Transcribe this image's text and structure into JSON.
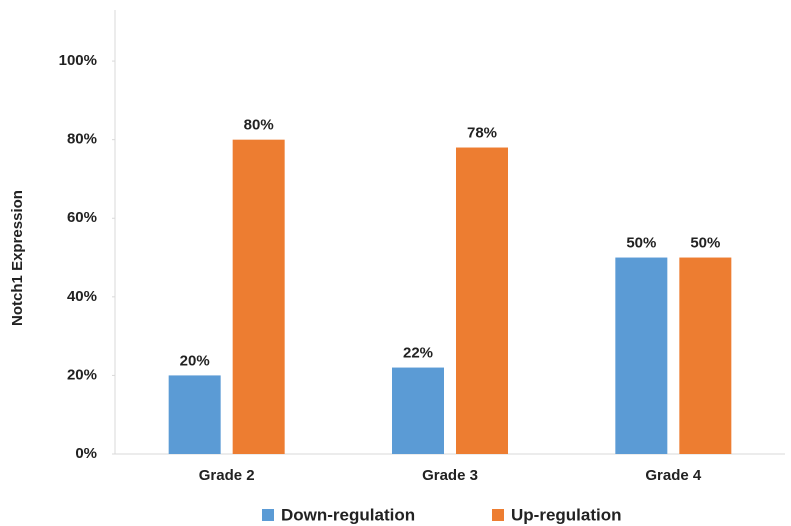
{
  "chart_data": {
    "type": "bar",
    "y_label": "Notch1 Expression",
    "categories": [
      "Grade 2",
      "Grade 3",
      "Grade 4"
    ],
    "series": [
      {
        "name": "Down-regulation",
        "color": "#5b9bd5",
        "values": [
          20,
          22,
          50
        ],
        "value_labels": [
          "20%",
          "22%",
          "50%"
        ]
      },
      {
        "name": "Up-regulation",
        "color": "#ed7d31",
        "values": [
          80,
          78,
          50
        ],
        "value_labels": [
          "80%",
          "78%",
          "50%"
        ]
      }
    ],
    "ylim": [
      0,
      113
    ],
    "yticks": [
      {
        "value": 0,
        "label": "0%"
      },
      {
        "value": 20,
        "label": "20%"
      },
      {
        "value": 40,
        "label": "40%"
      },
      {
        "value": 60,
        "label": "60%"
      },
      {
        "value": 80,
        "label": "80%"
      },
      {
        "value": 100,
        "label": "100%"
      }
    ],
    "grid": false,
    "legend": "bottom"
  }
}
